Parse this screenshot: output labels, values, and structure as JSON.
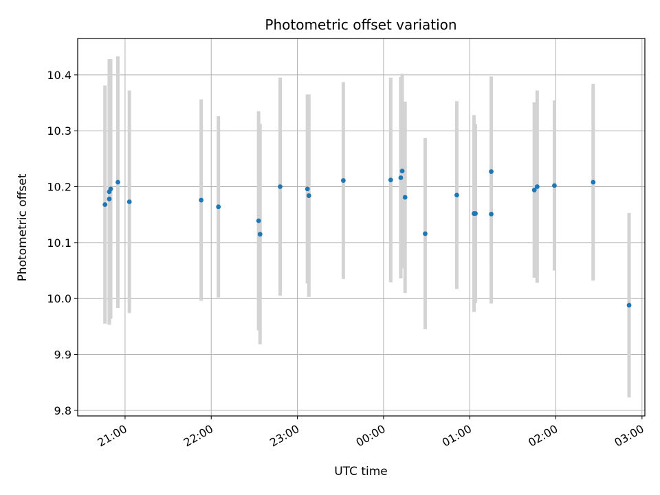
{
  "chart_data": {
    "type": "scatter",
    "title": "Photometric offset variation",
    "xlabel": "UTC time",
    "ylabel": "Photometric offset",
    "x_axis": "time",
    "xlim": [
      "20:27",
      "03:02"
    ],
    "ylim": [
      9.79,
      10.465
    ],
    "grid": true,
    "x_ticks": [
      "21:00",
      "22:00",
      "23:00",
      "00:00",
      "01:00",
      "02:00",
      "03:00"
    ],
    "y_ticks": [
      "9.8",
      "9.9",
      "10.0",
      "10.1",
      "10.2",
      "10.3",
      "10.4"
    ],
    "marker_color": "#1f77b4",
    "errorbar_color": "#d3d3d3",
    "points": [
      {
        "time": "20:46",
        "y": 10.168,
        "err": 0.213
      },
      {
        "time": "20:49",
        "y": 10.178,
        "err": 0.225
      },
      {
        "time": "20:49",
        "y": 10.191,
        "err": 0.237
      },
      {
        "time": "20:50",
        "y": 10.196,
        "err": 0.232
      },
      {
        "time": "20:55",
        "y": 10.208,
        "err": 0.225
      },
      {
        "time": "21:03",
        "y": 10.173,
        "err": 0.199
      },
      {
        "time": "21:53",
        "y": 10.176,
        "err": 0.18
      },
      {
        "time": "22:05",
        "y": 10.164,
        "err": 0.162
      },
      {
        "time": "22:33",
        "y": 10.139,
        "err": 0.196
      },
      {
        "time": "22:34",
        "y": 10.115,
        "err": 0.197
      },
      {
        "time": "22:48",
        "y": 10.2,
        "err": 0.195
      },
      {
        "time": "23:07",
        "y": 10.196,
        "err": 0.169
      },
      {
        "time": "23:08",
        "y": 10.184,
        "err": 0.181
      },
      {
        "time": "23:32",
        "y": 10.211,
        "err": 0.176
      },
      {
        "time": "00:05",
        "y": 10.212,
        "err": 0.183
      },
      {
        "time": "00:12",
        "y": 10.216,
        "err": 0.18
      },
      {
        "time": "00:13",
        "y": 10.228,
        "err": 0.174
      },
      {
        "time": "00:15",
        "y": 10.181,
        "err": 0.171
      },
      {
        "time": "00:29",
        "y": 10.116,
        "err": 0.171
      },
      {
        "time": "00:51",
        "y": 10.185,
        "err": 0.168
      },
      {
        "time": "01:03",
        "y": 10.152,
        "err": 0.176
      },
      {
        "time": "01:04",
        "y": 10.152,
        "err": 0.16
      },
      {
        "time": "01:15",
        "y": 10.151,
        "err": 0.16
      },
      {
        "time": "01:15",
        "y": 10.227,
        "err": 0.17
      },
      {
        "time": "01:45",
        "y": 10.194,
        "err": 0.157
      },
      {
        "time": "01:47",
        "y": 10.2,
        "err": 0.172
      },
      {
        "time": "01:59",
        "y": 10.202,
        "err": 0.152
      },
      {
        "time": "02:26",
        "y": 10.208,
        "err": 0.176
      },
      {
        "time": "02:51",
        "y": 9.988,
        "err": 0.165
      }
    ]
  }
}
